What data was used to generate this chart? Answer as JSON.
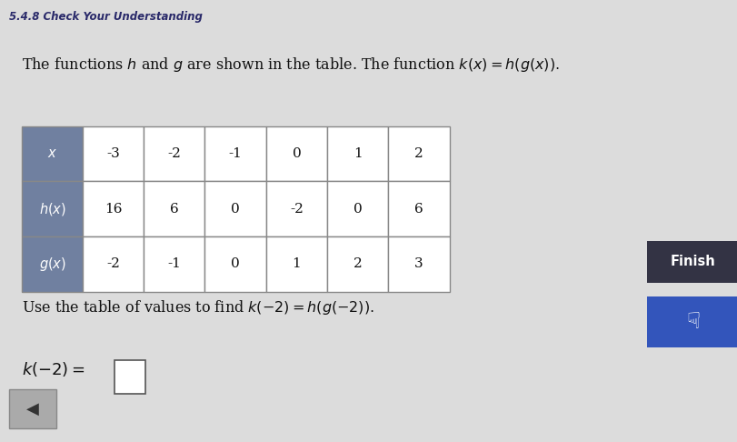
{
  "title": "5.4.8 Check Your Understanding",
  "background_color": "#dcdcdc",
  "intro_line": "The functions $\\it{h}$ and $\\it{g}$ are shown in the table. The function $k(x) = h(g(x)).$",
  "table_headers": [
    "-3",
    "-2",
    "-1",
    "0",
    "1",
    "2"
  ],
  "h_values": [
    "16",
    "6",
    "0",
    "-2",
    "0",
    "6"
  ],
  "g_values": [
    "-2",
    "-1",
    "0",
    "1",
    "2",
    "3"
  ],
  "row_labels": [
    "$x$",
    "$h(x)$",
    "$g(x)$"
  ],
  "row_label_bg": "#7080a0",
  "table_bg": "#ffffff",
  "table_border": "#888888",
  "use_text": "Use the table of values to find $k(-2) = h(g(-2)).$",
  "answer_label": "$k(-2) =$",
  "finish_bg": "#333344",
  "finish_text": "Finish",
  "arrow_bg": "#3355bb",
  "back_button_bg": "#aaaaaa"
}
